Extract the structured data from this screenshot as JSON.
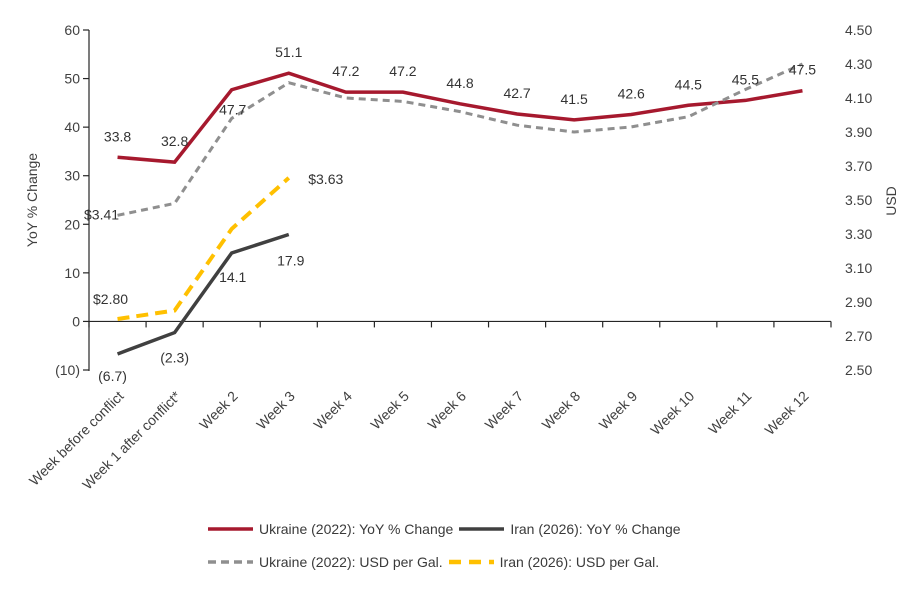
{
  "chart_data": {
    "type": "line",
    "title": "",
    "categories": [
      "Week before conflict",
      "Week 1 after conflict*",
      "Week 2",
      "Week 3",
      "Week 4",
      "Week 5",
      "Week 6",
      "Week 7",
      "Week 8",
      "Week 9",
      "Week 10",
      "Week 11",
      "Week 12"
    ],
    "left_axis": {
      "title": "YoY % Change",
      "min": -10,
      "max": 60,
      "step": 10,
      "tick_labels": [
        "60",
        "50",
        "40",
        "30",
        "20",
        "10",
        "0",
        "(10)"
      ]
    },
    "right_axis": {
      "title": "USD",
      "min": 2.5,
      "max": 4.5,
      "step": 0.2,
      "tick_labels": [
        "4.50",
        "4.30",
        "4.10",
        "3.90",
        "3.70",
        "3.50",
        "3.30",
        "3.10",
        "2.90",
        "2.70",
        "2.50"
      ]
    },
    "grid": "off",
    "legend_position": "bottom",
    "series": [
      {
        "id": "ukraine-2022-yoy",
        "name": "Ukraine (2022): YoY % Change",
        "axis": "left",
        "color": "#A6192E",
        "line_style": "solid",
        "values": [
          33.8,
          32.8,
          47.7,
          51.1,
          47.2,
          47.2,
          44.8,
          42.7,
          41.5,
          42.6,
          44.5,
          45.5,
          47.5
        ],
        "labels": [
          "33.8",
          "32.8",
          "47.7",
          "51.1",
          "47.2",
          "47.2",
          "44.8",
          "42.7",
          "41.5",
          "42.6",
          "44.5",
          "45.5",
          "47.5"
        ]
      },
      {
        "id": "iran-2026-yoy",
        "name": "Iran (2026): YoY % Change",
        "axis": "left",
        "color": "#404040",
        "line_style": "solid",
        "values": [
          -6.7,
          -2.3,
          14.1,
          17.9
        ],
        "labels": [
          "(6.7)",
          "(2.3)",
          "14.1",
          "17.9"
        ]
      },
      {
        "id": "ukraine-2022-usd",
        "name": "Ukraine (2022): USD per Gal.",
        "axis": "right",
        "color": "#8F8F8F",
        "line_style": "dashed",
        "values": [
          3.41,
          3.48,
          3.98,
          4.19,
          4.1,
          4.08,
          4.02,
          3.94,
          3.9,
          3.93,
          3.99,
          4.15,
          4.3
        ],
        "labels": [
          "$3.41",
          "",
          "",
          "",
          "",
          "",
          "",
          "",
          "",
          "",
          "",
          "",
          ""
        ]
      },
      {
        "id": "iran-2026-usd",
        "name": "Iran (2026): USD per Gal.",
        "axis": "right",
        "color": "#FFC000",
        "line_style": "dashed",
        "values": [
          2.8,
          2.85,
          3.33,
          3.63
        ],
        "labels": [
          "$2.80",
          "",
          "",
          "$3.63"
        ]
      }
    ]
  }
}
